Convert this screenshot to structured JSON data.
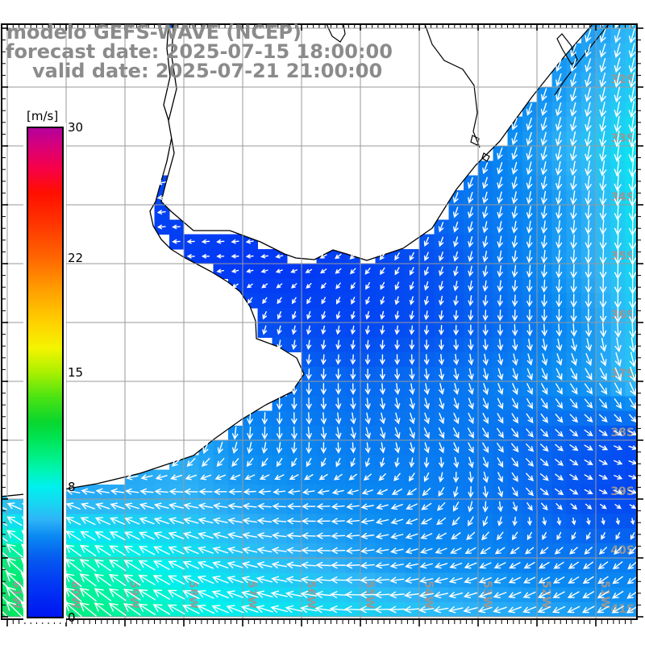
{
  "title": {
    "line1": "modelo GEFS-WAVE (NCEP)",
    "line2": "forecast date: 2025-07-15 18:00:00",
    "line3": "valid date: 2025-07-21 21:00:00"
  },
  "colorbar": {
    "unit_label": "[m/s]",
    "tick_values": [
      30,
      22,
      15,
      8,
      0
    ],
    "min": 0,
    "max": 30,
    "palette": [
      [
        0,
        "#0014f0"
      ],
      [
        2,
        "#0237f5"
      ],
      [
        3.5,
        "#0557f0"
      ],
      [
        5,
        "#0a8af2"
      ],
      [
        6,
        "#2fb4f7"
      ],
      [
        7,
        "#17d6f2"
      ],
      [
        8,
        "#00f0ee"
      ],
      [
        9,
        "#00f5b4"
      ],
      [
        10,
        "#00ee7e"
      ],
      [
        11,
        "#00e352"
      ],
      [
        12,
        "#0ad62e"
      ],
      [
        13.5,
        "#4ce312"
      ],
      [
        15,
        "#aaf000"
      ],
      [
        16.5,
        "#f4f400"
      ],
      [
        18,
        "#ffd200"
      ],
      [
        20,
        "#ffa000"
      ],
      [
        22,
        "#ff6600"
      ],
      [
        24,
        "#ff3700"
      ],
      [
        26,
        "#ff0f00"
      ],
      [
        27.5,
        "#f70048"
      ],
      [
        29,
        "#d4007f"
      ],
      [
        30,
        "#b2009e"
      ]
    ]
  },
  "map": {
    "lon_labels": [
      "61W",
      "60W",
      "59W",
      "58W",
      "57W",
      "56W",
      "55W",
      "54W",
      "53W",
      "52W",
      "51W"
    ],
    "lat_labels": [
      "32S",
      "33S",
      "34S",
      "35S",
      "36S",
      "37S",
      "38S",
      "39S",
      "40S",
      "41S"
    ],
    "grid_color": "#9a9a9a",
    "coast_color": "#000000",
    "arrow_color": "#ffffff",
    "land_color": "#ffffff"
  },
  "chart_data": {
    "type": "heatmap",
    "description": "Wind speed (m/s) shaded field with direction arrows on 0.25 deg cells; control grid below on 1 deg spacing",
    "lons_deg_west": [
      61,
      60,
      59,
      58,
      57,
      56,
      55,
      54,
      53,
      52,
      51,
      50
    ],
    "lats_deg_south": [
      31,
      32,
      33,
      34,
      35,
      36,
      37,
      38,
      39,
      40,
      41
    ],
    "speed_ms": [
      [
        4,
        4,
        4,
        4,
        3.5,
        3.5,
        3.5,
        4,
        4.5,
        5,
        5.5,
        6.5
      ],
      [
        3.5,
        3.5,
        3.5,
        3.5,
        3,
        3,
        3.5,
        4,
        4.5,
        5,
        6,
        7
      ],
      [
        3,
        3,
        3,
        3,
        2.8,
        3,
        3.5,
        4,
        4.5,
        5.5,
        6.5,
        8
      ],
      [
        2.8,
        2.8,
        2.6,
        2.5,
        2.5,
        3,
        3.5,
        4,
        4.5,
        5,
        6,
        8
      ],
      [
        2.6,
        2.5,
        2.3,
        2.2,
        2,
        2,
        2.5,
        3,
        4,
        5,
        6,
        7.5
      ],
      [
        3,
        3,
        3,
        3.2,
        3,
        2.8,
        2.6,
        3,
        3.8,
        4.5,
        5.5,
        7
      ],
      [
        4.5,
        4.5,
        4.8,
        5,
        4.5,
        4.2,
        4,
        4.2,
        4.5,
        5,
        5.5,
        7
      ],
      [
        5.5,
        5.5,
        5.5,
        5.8,
        5,
        4.8,
        4.5,
        4.5,
        4.5,
        4,
        3.5,
        2.6
      ],
      [
        6,
        5.8,
        5.8,
        6,
        5.5,
        5.2,
        5,
        4.8,
        4.5,
        4,
        3,
        2.5
      ],
      [
        10,
        9,
        8.5,
        7.5,
        6.5,
        6,
        5.5,
        5,
        5,
        4.5,
        4.5,
        4.5
      ],
      [
        10.8,
        10.2,
        9.5,
        8.5,
        8,
        7.5,
        7,
        6.5,
        6,
        5.8,
        5.5,
        5.5
      ]
    ],
    "dir_to_deg": [
      [
        250,
        250,
        250,
        240,
        230,
        225,
        220,
        215,
        210,
        205,
        200,
        195
      ],
      [
        260,
        260,
        255,
        245,
        235,
        230,
        225,
        215,
        210,
        200,
        195,
        190
      ],
      [
        265,
        265,
        260,
        250,
        245,
        235,
        230,
        215,
        205,
        195,
        190,
        185
      ],
      [
        268,
        268,
        266,
        262,
        255,
        240,
        220,
        205,
        195,
        190,
        185,
        182
      ],
      [
        270,
        270,
        270,
        272,
        270,
        255,
        225,
        205,
        192,
        186,
        182,
        180
      ],
      [
        250,
        240,
        230,
        215,
        200,
        195,
        192,
        188,
        182,
        180,
        180,
        180
      ],
      [
        200,
        195,
        190,
        188,
        185,
        182,
        180,
        172,
        165,
        155,
        145,
        165
      ],
      [
        230,
        225,
        210,
        195,
        185,
        175,
        165,
        155,
        148,
        135,
        120,
        100
      ],
      [
        290,
        288,
        285,
        280,
        275,
        270,
        262,
        240,
        180,
        130,
        115,
        105
      ],
      [
        312,
        308,
        302,
        295,
        285,
        275,
        265,
        255,
        245,
        238,
        232,
        228
      ],
      [
        315,
        312,
        306,
        298,
        290,
        282,
        272,
        265,
        255,
        248,
        242,
        238
      ]
    ]
  }
}
